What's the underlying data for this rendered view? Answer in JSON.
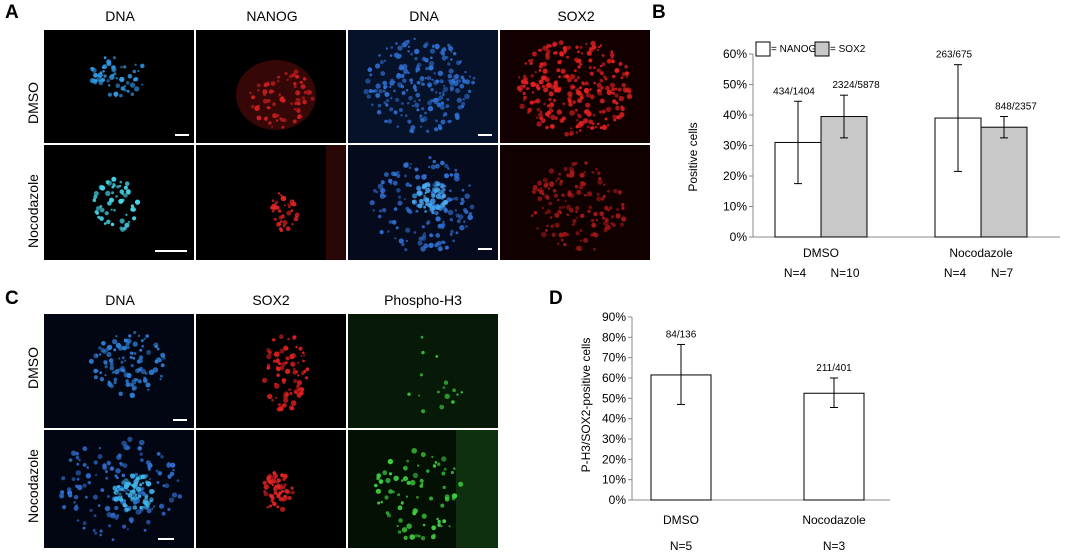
{
  "panels": {
    "A": {
      "letter": "A",
      "columns": [
        "DNA",
        "NANOG",
        "DNA",
        "SOX2"
      ],
      "rows": [
        "DMSO",
        "Nocodazole"
      ]
    },
    "B": {
      "letter": "B",
      "legend": {
        "nanog": "= NANOG",
        "sox2": "= SOX2"
      },
      "group_n": [
        {
          "nanog": "N=4",
          "sox2": "N=10"
        },
        {
          "nanog": "N=4",
          "sox2": "N=7"
        }
      ]
    },
    "C": {
      "letter": "C",
      "columns": [
        "DNA",
        "SOX2",
        "Phospho-H3"
      ],
      "rows": [
        "DMSO",
        "Nocodazole"
      ]
    },
    "D": {
      "letter": "D",
      "group_n": [
        "N=5",
        "N=3"
      ]
    }
  },
  "colors": {
    "dna": "#2f7fd8",
    "nanog": "#e02020",
    "sox2": "#e02020",
    "phosphoh3": "#37c23a",
    "bar_sox2": "#c8c8c8",
    "bar_nanog": "#ffffff"
  },
  "chart_data": [
    {
      "type": "bar",
      "panel": "B",
      "ylabel": "Positive cells",
      "categories": [
        "DMSO",
        "Nocodazole"
      ],
      "ylim": [
        0,
        60
      ],
      "yticks": [
        "0%",
        "10%",
        "20%",
        "30%",
        "40%",
        "50%",
        "60%"
      ],
      "series": [
        {
          "name": "NANOG",
          "values": [
            31,
            39
          ],
          "err_low": [
            17.5,
            21.5
          ],
          "err_high": [
            44.5,
            56.5
          ],
          "labels": [
            "434/1404",
            "263/675"
          ]
        },
        {
          "name": "SOX2",
          "values": [
            39.5,
            36
          ],
          "err_low": [
            32.5,
            32.5
          ],
          "err_high": [
            46.5,
            39.5
          ],
          "labels": [
            "2324/5878",
            "848/2357"
          ]
        }
      ]
    },
    {
      "type": "bar",
      "panel": "D",
      "ylabel": "P-H3/SOX2-positive cells",
      "categories": [
        "DMSO",
        "Nocodazole"
      ],
      "ylim": [
        0,
        90
      ],
      "yticks": [
        "0%",
        "10%",
        "20%",
        "30%",
        "40%",
        "50%",
        "60%",
        "70%",
        "80%",
        "90%"
      ],
      "series": [
        {
          "values": [
            61.5,
            52.5
          ],
          "err_low": [
            47,
            45.5
          ],
          "err_high": [
            76.5,
            60
          ],
          "labels": [
            "84/136",
            "211/401"
          ]
        }
      ]
    }
  ]
}
